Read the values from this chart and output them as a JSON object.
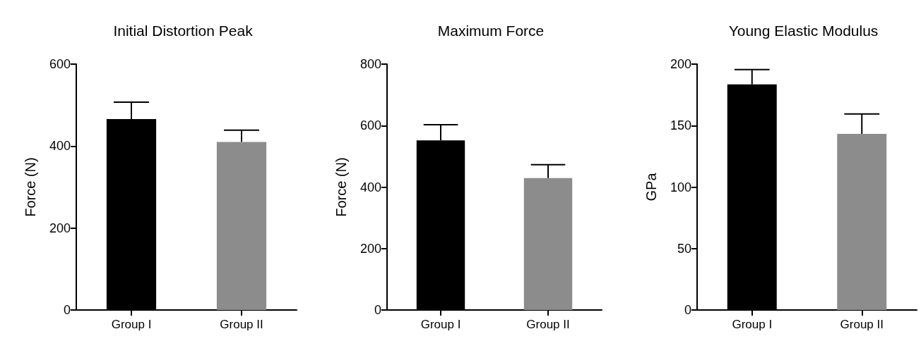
{
  "chart_data": [
    {
      "type": "bar",
      "title": "Initial Distortion Peak",
      "ylabel": "Force (N)",
      "categories": [
        "Group I",
        "Group II"
      ],
      "values": [
        466,
        410
      ],
      "colors": [
        "#000000",
        "#8c8c8c"
      ],
      "errors": [
        [
          466,
          507
        ],
        [
          410,
          439
        ]
      ],
      "ylim": [
        0,
        600
      ],
      "yticks": [
        0,
        200,
        400,
        600
      ],
      "grid": false
    },
    {
      "type": "bar",
      "title": "Maximum Force",
      "ylabel": "Force (N)",
      "categories": [
        "Group I",
        "Group II"
      ],
      "values": [
        552,
        429
      ],
      "colors": [
        "#000000",
        "#8c8c8c"
      ],
      "errors": [
        [
          552,
          603
        ],
        [
          429,
          473
        ]
      ],
      "ylim": [
        0,
        800
      ],
      "yticks": [
        0,
        200,
        400,
        600,
        800
      ],
      "grid": false
    },
    {
      "type": "bar",
      "title": "Young Elastic Modulus",
      "ylabel": "GPa",
      "categories": [
        "Group I",
        "Group II"
      ],
      "values": [
        183.5,
        143.3
      ],
      "colors": [
        "#000000",
        "#8c8c8c"
      ],
      "errors": [
        [
          183.5,
          195.6
        ],
        [
          143.3,
          159.4
        ]
      ],
      "ylim": [
        0,
        200
      ],
      "yticks": [
        0,
        50,
        100,
        150,
        200
      ],
      "grid": false
    }
  ]
}
